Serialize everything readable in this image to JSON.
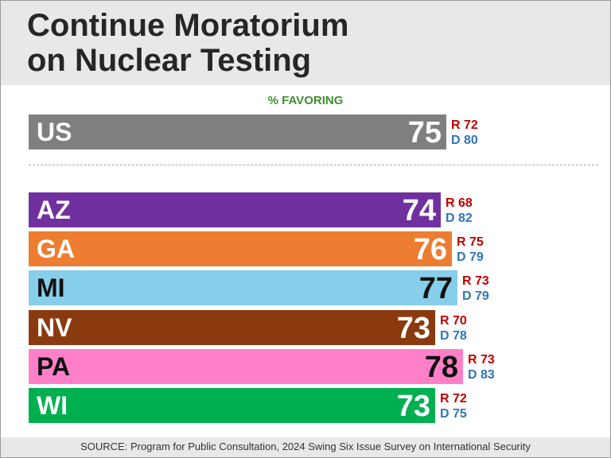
{
  "title_line1": "Continue Moratorium",
  "title_line2": "on Nuclear Testing",
  "source": "SOURCE: Program for Public Consultation, 2024 Swing Six Issue Survey on International Security",
  "chart_data": {
    "type": "bar",
    "orientation": "horizontal",
    "subtitle": "% FAVORING",
    "value_range": [
      0,
      100
    ],
    "rows": [
      {
        "label": "US",
        "value": 75,
        "r_label": "R 72",
        "d_label": "D 80",
        "color": "#7f7f7f",
        "label_color": "#ffffff",
        "value_color": "#ffffff"
      },
      {
        "label": "AZ",
        "value": 74,
        "r_label": "R 68",
        "d_label": "D 82",
        "color": "#7030a0",
        "label_color": "#ffffff",
        "value_color": "#ffffff"
      },
      {
        "label": "GA",
        "value": 76,
        "r_label": "R 75",
        "d_label": "D 79",
        "color": "#ed7d31",
        "label_color": "#ffffff",
        "value_color": "#ffffff"
      },
      {
        "label": "MI",
        "value": 77,
        "r_label": "R 73",
        "d_label": "D 79",
        "color": "#87ceeb",
        "label_color": "#111111",
        "value_color": "#111111"
      },
      {
        "label": "NV",
        "value": 73,
        "r_label": "R 70",
        "d_label": "D 78",
        "color": "#8b3a10",
        "label_color": "#ffffff",
        "value_color": "#ffffff"
      },
      {
        "label": "PA",
        "value": 78,
        "r_label": "R 73",
        "d_label": "D 83",
        "color": "#ff80c8",
        "label_color": "#111111",
        "value_color": "#111111"
      },
      {
        "label": "WI",
        "value": 73,
        "r_label": "R 72",
        "d_label": "D 75",
        "color": "#00b050",
        "label_color": "#ffffff",
        "value_color": "#ffffff"
      }
    ],
    "r_color": "#c00000",
    "d_color": "#2e75b6"
  }
}
